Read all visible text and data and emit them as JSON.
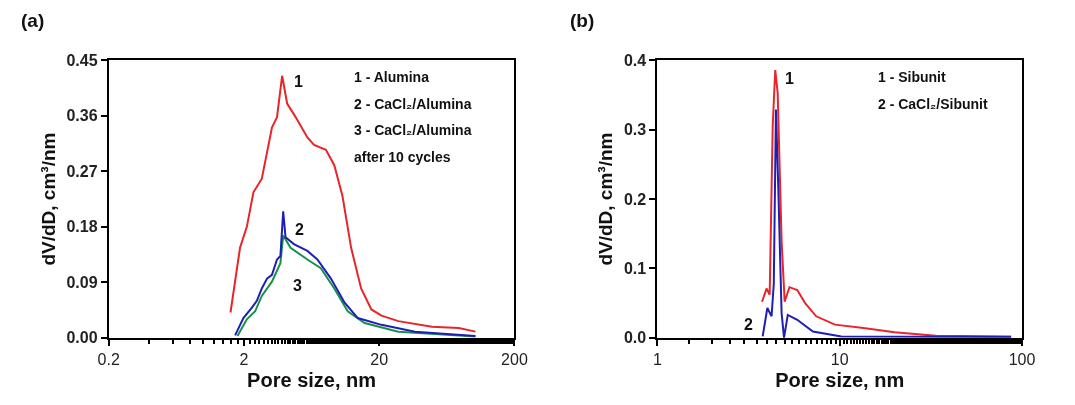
{
  "chart_data": [
    {
      "type": "line",
      "title": "(a)",
      "xlabel": "Pore size, nm",
      "ylabel": "dV/dD, cm³/nm",
      "log": "x",
      "xlim": [
        0.2,
        200
      ],
      "xticks": [
        0.2,
        2,
        20,
        200
      ],
      "ylim": [
        0,
        0.45
      ],
      "yticks": [
        {
          "value": 0,
          "label": "0.00"
        },
        {
          "value": 0.09,
          "label": "0.09"
        },
        {
          "value": 0.18,
          "label": "0.18"
        },
        {
          "value": 0.27,
          "label": "0.27"
        },
        {
          "value": 0.36,
          "label": "0.36"
        },
        {
          "value": 0.45,
          "label": "0.45"
        }
      ],
      "series": [
        {
          "name": "1",
          "color": "#e8262a",
          "x": [
            1.59,
            1.87,
            2.1,
            2.35,
            2.71,
            3.22,
            3.51,
            3.83,
            4.17,
            4.82,
            5.89,
            6.6,
            8.07,
            9.31,
            10.7,
            12.4,
            14.7,
            17.5,
            20.8,
            27.7,
            49.1,
            77.6,
            103
          ],
          "values": [
            0.041,
            0.146,
            0.18,
            0.236,
            0.258,
            0.341,
            0.358,
            0.425,
            0.38,
            0.358,
            0.325,
            0.313,
            0.305,
            0.28,
            0.23,
            0.146,
            0.08,
            0.046,
            0.036,
            0.027,
            0.018,
            0.016,
            0.01
          ]
        },
        {
          "name": "3",
          "color": "#1a8f4c",
          "x": [
            1.79,
            2.1,
            2.42,
            2.71,
            3.22,
            3.72,
            3.9,
            4.42,
            5.89,
            7.4,
            9.31,
            11.7,
            15.6,
            27.7,
            103
          ],
          "values": [
            0.003,
            0.03,
            0.043,
            0.068,
            0.091,
            0.121,
            0.166,
            0.146,
            0.127,
            0.113,
            0.08,
            0.043,
            0.024,
            0.01,
            0.002
          ]
        },
        {
          "name": "2",
          "color": "#1f1fb4",
          "x": [
            1.72,
            1.98,
            2.29,
            2.49,
            2.71,
            2.96,
            3.22,
            3.51,
            3.72,
            3.9,
            4.06,
            4.68,
            5.89,
            6.98,
            8.79,
            11.1,
            13.9,
            20.8,
            36.8,
            103
          ],
          "values": [
            0.004,
            0.032,
            0.049,
            0.06,
            0.08,
            0.096,
            0.102,
            0.127,
            0.133,
            0.205,
            0.163,
            0.152,
            0.141,
            0.127,
            0.096,
            0.057,
            0.032,
            0.021,
            0.01,
            0.003
          ]
        }
      ],
      "annotations": [
        "1 - Alumina",
        "2 - CaCl₂/Alumina",
        "3 - CaCl₂/Alumina",
        "after 10 cycles"
      ]
    },
    {
      "type": "line",
      "title": "(b)",
      "xlabel": "Pore size, nm",
      "ylabel": "dV/dD, cm³/nm",
      "log": "x",
      "xlim": [
        1,
        100
      ],
      "xticks": [
        1,
        10,
        100
      ],
      "ylim": [
        0,
        0.4
      ],
      "yticks": [
        {
          "value": 0,
          "label": "0.0"
        },
        {
          "value": 0.1,
          "label": "0.1"
        },
        {
          "value": 0.2,
          "label": "0.2"
        },
        {
          "value": 0.3,
          "label": "0.3"
        },
        {
          "value": 0.4,
          "label": "0.4"
        }
      ],
      "series": [
        {
          "name": "1",
          "color": "#e8262a",
          "x": [
            3.75,
            3.97,
            4.13,
            4.29,
            4.43,
            4.57,
            4.8,
            4.99,
            5.3,
            5.85,
            6.46,
            7.43,
            9.42,
            13.5,
            20.0,
            33.6,
            87.1
          ],
          "values": [
            0.052,
            0.071,
            0.062,
            0.305,
            0.386,
            0.353,
            0.14,
            0.052,
            0.073,
            0.069,
            0.05,
            0.031,
            0.019,
            0.014,
            0.008,
            0.003,
            0.002
          ]
        },
        {
          "name": "2",
          "color": "#1f1fb4",
          "x": [
            3.78,
            4.01,
            4.23,
            4.35,
            4.47,
            4.61,
            4.8,
            4.95,
            5.19,
            5.85,
            7.13,
            10.2,
            87.1
          ],
          "values": [
            0.002,
            0.043,
            0.031,
            0.078,
            0.329,
            0.211,
            0.036,
            0.0,
            0.033,
            0.026,
            0.009,
            0.002,
            0.001
          ]
        }
      ],
      "annotations": [
        "1 - Sibunit",
        "2 - CaCl₂/Sibunit"
      ]
    }
  ]
}
